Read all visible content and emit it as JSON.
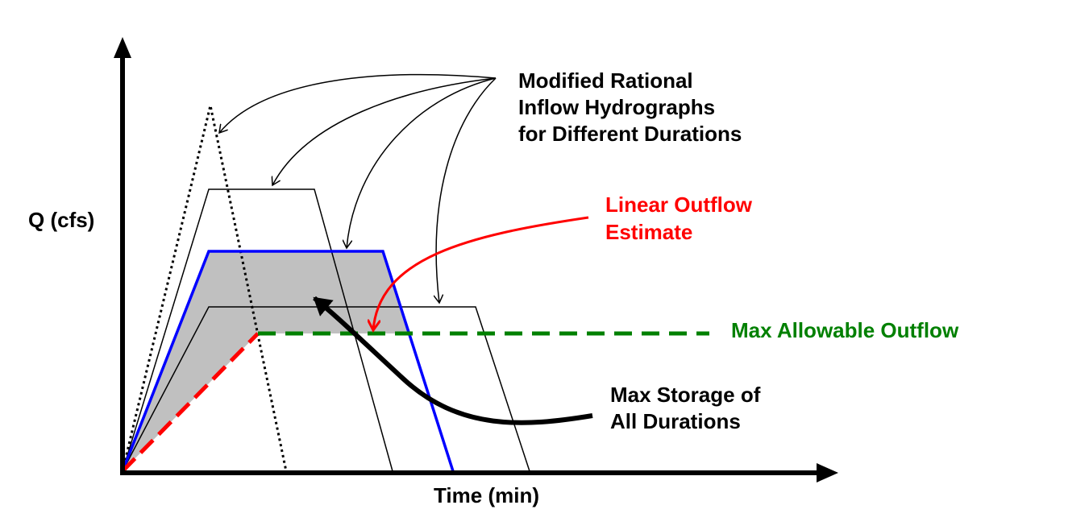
{
  "axes": {
    "y_label": "Q (cfs)",
    "x_label": "Time (min)"
  },
  "annotations": [
    {
      "lines": [
        "Modified Rational",
        "Inflow Hydrographs",
        "for Different Durations"
      ]
    },
    {
      "lines": [
        "Linear Outflow",
        "Estimate"
      ]
    },
    {
      "lines": [
        "Max Allowable Outflow"
      ]
    },
    {
      "lines": [
        "Max Storage of",
        "All Durations"
      ]
    }
  ]
}
